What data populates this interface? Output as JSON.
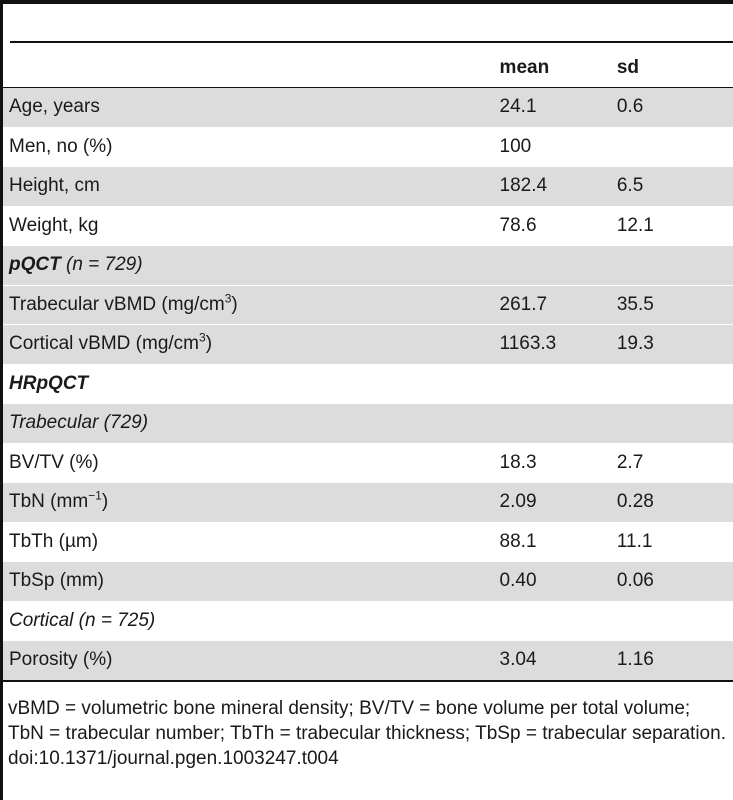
{
  "columns": {
    "mean": "mean",
    "sd": "sd"
  },
  "rows": [
    {
      "label": "Age, years",
      "mean": "24.1",
      "sd": "0.6"
    },
    {
      "label": "Men, no (%)",
      "mean": "100",
      "sd": ""
    },
    {
      "label": "Height, cm",
      "mean": "182.4",
      "sd": "6.5"
    },
    {
      "label": "Weight, kg",
      "mean": "78.6",
      "sd": "12.1"
    },
    {
      "label_main": "pQCT",
      "label_suffix": " (n = 729)",
      "mean": "",
      "sd": ""
    },
    {
      "label_main": "Trabecular vBMD (mg/cm",
      "label_sup": "3",
      "label_suffix": ")",
      "mean": "261.7",
      "sd": "35.5"
    },
    {
      "label_main": "Cortical vBMD (mg/cm",
      "label_sup": "3",
      "label_suffix": ")",
      "mean": "1163.3",
      "sd": "19.3"
    },
    {
      "label": "HRpQCT",
      "mean": "",
      "sd": ""
    },
    {
      "label": "Trabecular (729)",
      "mean": "",
      "sd": ""
    },
    {
      "label": "BV/TV (%)",
      "mean": "18.3",
      "sd": "2.7"
    },
    {
      "label_main": "TbN (mm",
      "label_sup": "−1",
      "label_suffix": ")",
      "mean": "2.09",
      "sd": "0.28"
    },
    {
      "label": "TbTh (µm)",
      "mean": "88.1",
      "sd": "11.1"
    },
    {
      "label": "TbSp (mm)",
      "mean": "0.40",
      "sd": "0.06"
    },
    {
      "label": "Cortical (n = 725)",
      "mean": "",
      "sd": ""
    },
    {
      "label": "Porosity (%)",
      "mean": "3.04",
      "sd": "1.16"
    }
  ],
  "footnote": {
    "text": "vBMD = volumetric bone mineral density; BV/TV = bone volume per total volume; TbN = trabecular number; TbTh = trabecular thickness; TbSp = trabecular separation.",
    "doi": "doi:10.1371/journal.pgen.1003247.t004"
  }
}
